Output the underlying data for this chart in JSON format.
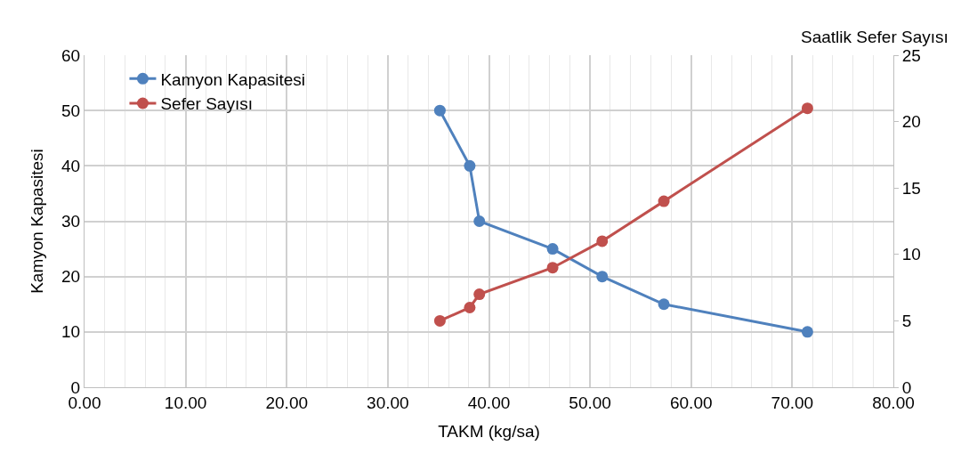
{
  "chart_data": {
    "type": "line",
    "xlabel": "TAKM (kg/sa)",
    "ylabel": "Kamyon Kapasitesi",
    "y2label": "Saatlik Sefer Sayısı",
    "x": [
      35.15,
      38.1,
      39.05,
      46.3,
      51.2,
      57.3,
      71.5
    ],
    "series": [
      {
        "name": "Kamyon Kapasitesi",
        "color": "#4f81bd",
        "values": [
          50,
          40,
          30,
          25,
          20,
          15,
          10
        ]
      },
      {
        "name": "Sefer Sayısı",
        "color": "#c0504d",
        "values": [
          5,
          6,
          7,
          9,
          11,
          14,
          21
        ],
        "axis": "y2"
      }
    ],
    "xlim": [
      0,
      80
    ],
    "xticks": [
      {
        "value": 0,
        "label": "0.00"
      },
      {
        "value": 2,
        "label": null
      },
      {
        "value": 4,
        "label": null
      },
      {
        "value": 6,
        "label": null
      },
      {
        "value": 8,
        "label": null
      },
      {
        "value": 10,
        "label": "10.00"
      },
      {
        "value": 12,
        "label": null
      },
      {
        "value": 14,
        "label": null
      },
      {
        "value": 16,
        "label": null
      },
      {
        "value": 18,
        "label": null
      },
      {
        "value": 20,
        "label": "20.00"
      },
      {
        "value": 22,
        "label": null
      },
      {
        "value": 24,
        "label": null
      },
      {
        "value": 26,
        "label": null
      },
      {
        "value": 28,
        "label": null
      },
      {
        "value": 30,
        "label": "30.00"
      },
      {
        "value": 32,
        "label": null
      },
      {
        "value": 34,
        "label": null
      },
      {
        "value": 36,
        "label": null
      },
      {
        "value": 38,
        "label": null
      },
      {
        "value": 40,
        "label": "40.00"
      },
      {
        "value": 42,
        "label": null
      },
      {
        "value": 44,
        "label": null
      },
      {
        "value": 46,
        "label": null
      },
      {
        "value": 48,
        "label": null
      },
      {
        "value": 50,
        "label": "50.00"
      },
      {
        "value": 52,
        "label": null
      },
      {
        "value": 54,
        "label": null
      },
      {
        "value": 56,
        "label": null
      },
      {
        "value": 58,
        "label": null
      },
      {
        "value": 60,
        "label": "60.00"
      },
      {
        "value": 62,
        "label": null
      },
      {
        "value": 64,
        "label": null
      },
      {
        "value": 66,
        "label": null
      },
      {
        "value": 68,
        "label": null
      },
      {
        "value": 70,
        "label": "70.00"
      },
      {
        "value": 72,
        "label": null
      },
      {
        "value": 74,
        "label": null
      },
      {
        "value": 76,
        "label": null
      },
      {
        "value": 78,
        "label": null
      },
      {
        "value": 80,
        "label": "80.00"
      }
    ],
    "ylim": [
      0,
      60
    ],
    "yticks": [
      0,
      10,
      20,
      30,
      40,
      50,
      60
    ],
    "y2lim": [
      0,
      25
    ],
    "y2ticks": [
      0,
      5,
      10,
      15,
      20,
      25
    ],
    "grid": true,
    "legend": "top left",
    "marker": "circle",
    "line_style": "solid"
  }
}
